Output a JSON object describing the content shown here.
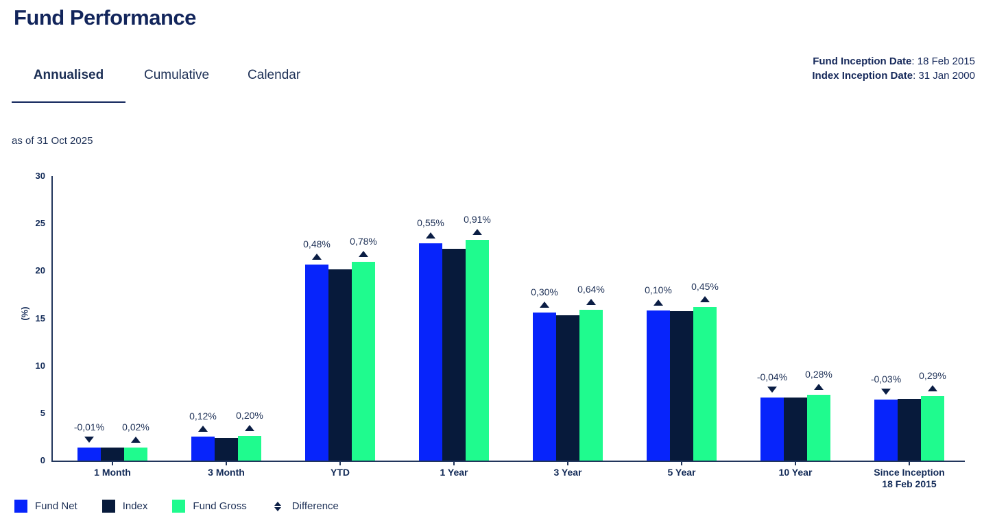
{
  "page_title": "Fund Performance",
  "tabs": [
    {
      "label": "Annualised",
      "active": true
    },
    {
      "label": "Cumulative",
      "active": false
    },
    {
      "label": "Calendar",
      "active": false
    }
  ],
  "inception": {
    "fund_label": "Fund Inception Date",
    "fund_value": "18 Feb 2015",
    "index_label": "Index Inception Date",
    "index_value": "31 Jan 2000"
  },
  "as_of": "as of 31 Oct 2025",
  "colors": {
    "fund_net": "#0724fb",
    "index": "#071a3b",
    "fund_gross": "#1ffb8e",
    "marker": "#0a1d44",
    "axis": "#22365c"
  },
  "legend": [
    {
      "label": "Fund Net",
      "swatch": "fund_net"
    },
    {
      "label": "Index",
      "swatch": "index"
    },
    {
      "label": "Fund Gross",
      "swatch": "fund_gross"
    },
    {
      "label": "Difference",
      "swatch": "difference-glyph"
    }
  ],
  "chart_data": {
    "type": "bar",
    "title": "Fund Performance - Annualised",
    "xlabel": "",
    "ylabel": "(%)",
    "ylim": [
      0,
      30
    ],
    "yticks": [
      0,
      5,
      10,
      15,
      20,
      25,
      30
    ],
    "grid": false,
    "legend_position": "bottom",
    "categories": [
      [
        "1 Month"
      ],
      [
        "3 Month"
      ],
      [
        "YTD"
      ],
      [
        "1 Year"
      ],
      [
        "3 Year"
      ],
      [
        "5 Year"
      ],
      [
        "10 Year"
      ],
      [
        "Since Inception",
        "18 Feb 2015"
      ]
    ],
    "series": [
      {
        "name": "Fund Net",
        "color_key": "fund_net",
        "values": [
          1.35,
          2.52,
          20.68,
          22.9,
          15.6,
          15.85,
          6.63,
          6.47
        ]
      },
      {
        "name": "Index",
        "color_key": "index",
        "values": [
          1.36,
          2.4,
          20.2,
          22.35,
          15.3,
          15.75,
          6.67,
          6.5
        ]
      },
      {
        "name": "Fund Gross",
        "color_key": "fund_gross",
        "values": [
          1.38,
          2.6,
          20.98,
          23.26,
          15.94,
          16.2,
          6.95,
          6.79
        ]
      }
    ],
    "difference_annotations": [
      {
        "fund_net": "-0,01%",
        "fund_net_direction": "down",
        "fund_gross": "0,02%",
        "fund_gross_direction": "up"
      },
      {
        "fund_net": "0,12%",
        "fund_net_direction": "up",
        "fund_gross": "0,20%",
        "fund_gross_direction": "up"
      },
      {
        "fund_net": "0,48%",
        "fund_net_direction": "up",
        "fund_gross": "0,78%",
        "fund_gross_direction": "up"
      },
      {
        "fund_net": "0,55%",
        "fund_net_direction": "up",
        "fund_gross": "0,91%",
        "fund_gross_direction": "up"
      },
      {
        "fund_net": "0,30%",
        "fund_net_direction": "up",
        "fund_gross": "0,64%",
        "fund_gross_direction": "up"
      },
      {
        "fund_net": "0,10%",
        "fund_net_direction": "up",
        "fund_gross": "0,45%",
        "fund_gross_direction": "up"
      },
      {
        "fund_net": "-0,04%",
        "fund_net_direction": "down",
        "fund_gross": "0,28%",
        "fund_gross_direction": "up"
      },
      {
        "fund_net": "-0,03%",
        "fund_net_direction": "down",
        "fund_gross": "0,29%",
        "fund_gross_direction": "up"
      }
    ]
  }
}
